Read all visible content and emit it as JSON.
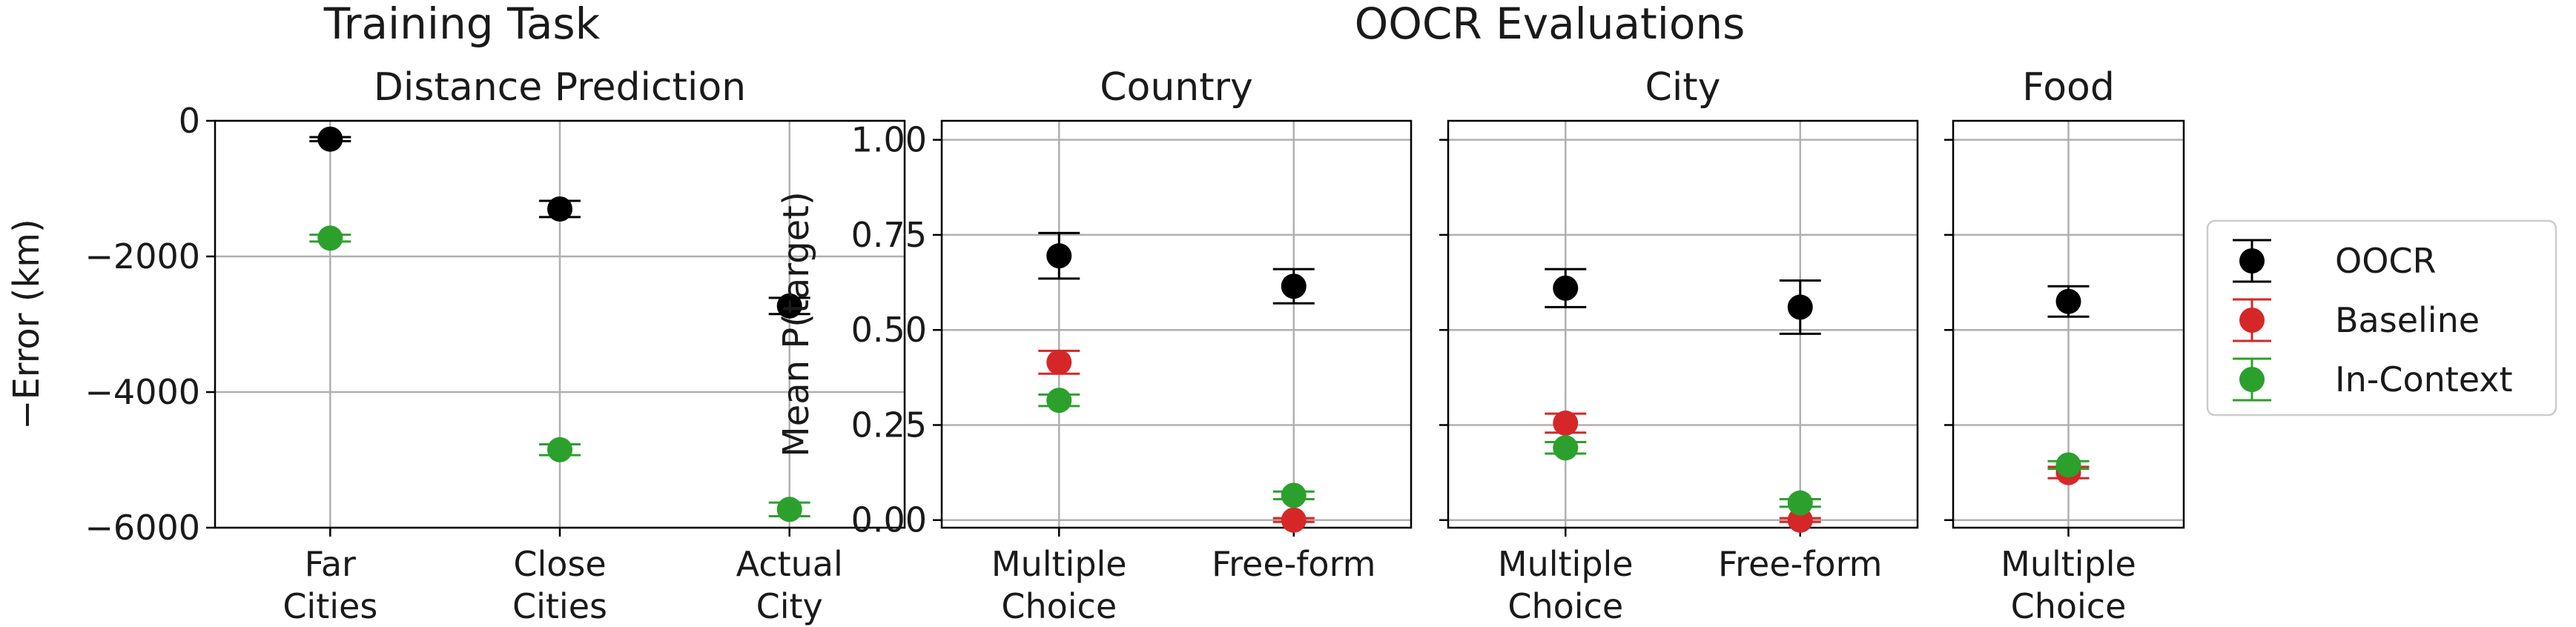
{
  "headings": {
    "training_task": "Training Task",
    "oocr_evaluations": "OOCR Evaluations"
  },
  "legend": {
    "placement": "right",
    "items": [
      {
        "label": "OOCR",
        "color": "#000000"
      },
      {
        "label": "Baseline",
        "color": "#d62728"
      },
      {
        "label": "In-Context",
        "color": "#2ca02c"
      }
    ]
  },
  "chart_data": [
    {
      "type": "scatter",
      "subtitle": "Distance Prediction",
      "ylabel": "−Error (km)",
      "ylim": [
        -6000,
        0
      ],
      "yticks": [
        0,
        -2000,
        -4000,
        -6000
      ],
      "ytick_labels": [
        "0",
        "−2000",
        "−4000",
        "−6000"
      ],
      "categories": [
        [
          "Far",
          "Cities"
        ],
        [
          "Close",
          "Cities"
        ],
        [
          "Actual",
          "City"
        ]
      ],
      "grid": true,
      "series": [
        {
          "name": "OOCR",
          "values": [
            -270,
            -1300,
            -2730
          ],
          "errors": [
            30,
            120,
            120
          ]
        },
        {
          "name": "In-Context",
          "values": [
            -1730,
            -4850,
            -5730
          ],
          "errors": [
            50,
            80,
            100
          ]
        }
      ]
    },
    {
      "type": "scatter",
      "title": "Country",
      "ylabel": "Mean P(target)",
      "ylim": [
        -0.02,
        1.05
      ],
      "yticks": [
        0,
        0.25,
        0.5,
        0.75,
        1
      ],
      "ytick_labels": [
        "0.00",
        "0.25",
        "0.50",
        "0.75",
        "1.00"
      ],
      "categories": [
        [
          "Multiple",
          "Choice"
        ],
        [
          "Free-form"
        ]
      ],
      "grid": true,
      "series": [
        {
          "name": "OOCR",
          "values": [
            0.695,
            0.615
          ],
          "errors": [
            0.06,
            0.045
          ]
        },
        {
          "name": "Baseline",
          "values": [
            0.415,
            0.0
          ],
          "errors": [
            0.03,
            0.005
          ]
        },
        {
          "name": "In-Context",
          "values": [
            0.315,
            0.065
          ],
          "errors": [
            0.015,
            0.01
          ]
        }
      ]
    },
    {
      "type": "scatter",
      "title": "City",
      "ylim": [
        -0.02,
        1.05
      ],
      "categories": [
        [
          "Multiple",
          "Choice"
        ],
        [
          "Free-form"
        ]
      ],
      "grid": true,
      "series": [
        {
          "name": "OOCR",
          "values": [
            0.61,
            0.56
          ],
          "errors": [
            0.05,
            0.07
          ]
        },
        {
          "name": "Baseline",
          "values": [
            0.255,
            0.0
          ],
          "errors": [
            0.025,
            0.005
          ]
        },
        {
          "name": "In-Context",
          "values": [
            0.19,
            0.045
          ],
          "errors": [
            0.015,
            0.01
          ]
        }
      ]
    },
    {
      "type": "scatter",
      "title": "Food",
      "ylim": [
        -0.02,
        1.05
      ],
      "categories": [
        [
          "Multiple",
          "Choice"
        ]
      ],
      "grid": true,
      "series": [
        {
          "name": "OOCR",
          "values": [
            0.575
          ],
          "errors": [
            0.04
          ]
        },
        {
          "name": "Baseline",
          "values": [
            0.125
          ],
          "errors": [
            0.015
          ]
        },
        {
          "name": "In-Context",
          "values": [
            0.145
          ],
          "errors": [
            0.01
          ]
        }
      ]
    }
  ]
}
